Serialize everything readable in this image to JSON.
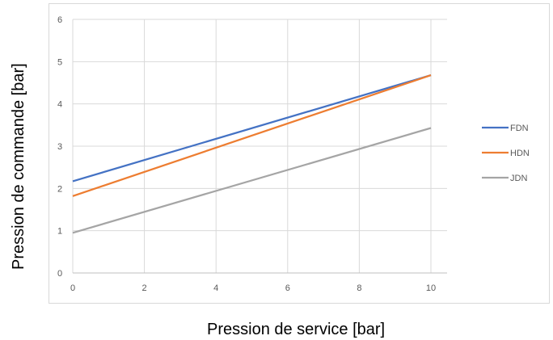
{
  "chart_data": {
    "type": "line",
    "xlabel": "Pression de service [bar]",
    "ylabel": "Pression de commande [bar]",
    "xlim": [
      0,
      10
    ],
    "ylim": [
      0,
      6
    ],
    "xticks": [
      "0",
      "2",
      "4",
      "6",
      "8",
      "10"
    ],
    "yticks": [
      "0",
      "1",
      "2",
      "3",
      "4",
      "5",
      "6"
    ],
    "grid": true,
    "legend_position": "right",
    "x": [
      0,
      10
    ],
    "series": [
      {
        "name": "FDN",
        "values": [
          2.17,
          4.68
        ],
        "color": "#4472c4"
      },
      {
        "name": "HDN",
        "values": [
          1.82,
          4.68
        ],
        "color": "#ed7d31"
      },
      {
        "name": "JDN",
        "values": [
          0.95,
          3.43
        ],
        "color": "#a5a5a5"
      }
    ]
  }
}
